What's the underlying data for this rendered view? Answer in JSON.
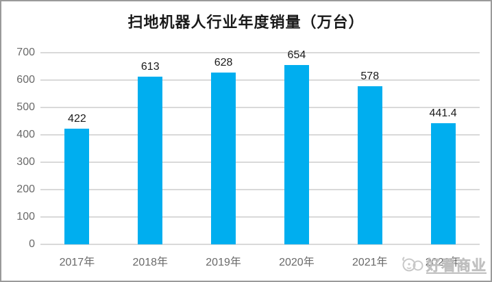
{
  "chart_data": {
    "type": "bar",
    "title": "扫地机器人行业年度销量（万台）",
    "categories": [
      "2017年",
      "2018年",
      "2019年",
      "2020年",
      "2021年",
      "2022年"
    ],
    "values": [
      422,
      613,
      628,
      654,
      578,
      441.4
    ],
    "value_labels": [
      "422",
      "613",
      "628",
      "654",
      "578",
      "441.4"
    ],
    "xlabel": "",
    "ylabel": "",
    "ylim": [
      0,
      700
    ],
    "ytick_interval": 100,
    "ytick_labels": [
      "0",
      "100",
      "200",
      "300",
      "400",
      "500",
      "600",
      "700"
    ],
    "grid": "horizontal",
    "legend_position": "none",
    "colors": {
      "bar": "#00aeef",
      "gridline": "#d9d9d9",
      "axis_text": "#696969",
      "value_label_text": "#1a1a1a",
      "title_text": "#1a1a1a",
      "frame_border": "#9a9a9a",
      "watermark": "#c2c2c2"
    }
  },
  "watermark": {
    "text": "好看商业",
    "icon": "watermark-logo-icon"
  }
}
